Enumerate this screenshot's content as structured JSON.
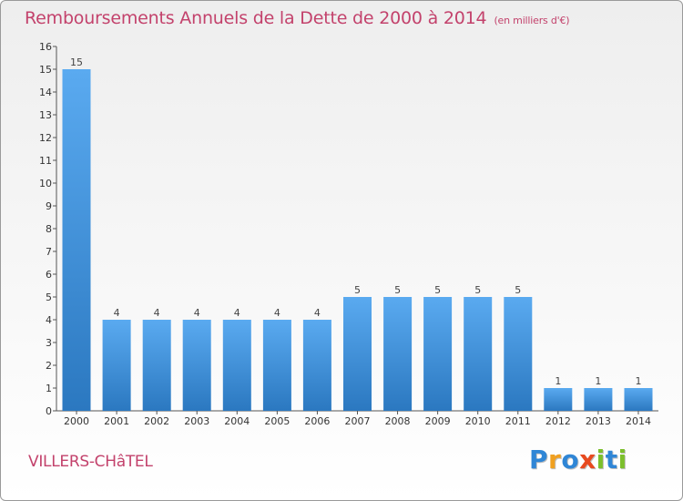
{
  "title": "Remboursements Annuels de la Dette de 2000 à 2014",
  "unit_note": "(en milliers d'€)",
  "commune": "VILLERS-CHâTEL",
  "brand": "Proxiti",
  "colors": {
    "title": "#c3426c",
    "bar_top": "#5aaaf0",
    "bar_bottom": "#2b78c0",
    "axis": "#555555"
  },
  "chart_data": {
    "type": "bar",
    "title": "Remboursements Annuels de la Dette de 2000 à 2014",
    "xlabel": "",
    "ylabel": "",
    "ylim": [
      0,
      16
    ],
    "yticks": [
      0,
      1,
      2,
      3,
      4,
      5,
      6,
      7,
      8,
      9,
      10,
      11,
      12,
      13,
      14,
      15,
      16
    ],
    "grid": false,
    "categories": [
      "2000",
      "2001",
      "2002",
      "2003",
      "2004",
      "2005",
      "2006",
      "2007",
      "2008",
      "2009",
      "2010",
      "2011",
      "2012",
      "2013",
      "2014"
    ],
    "values": [
      15,
      4,
      4,
      4,
      4,
      4,
      4,
      5,
      5,
      5,
      5,
      5,
      1,
      1,
      1
    ],
    "data_labels": [
      "15",
      "4",
      "4",
      "4",
      "4",
      "4",
      "4",
      "5",
      "5",
      "5",
      "5",
      "5",
      "1",
      "1",
      "1"
    ]
  }
}
